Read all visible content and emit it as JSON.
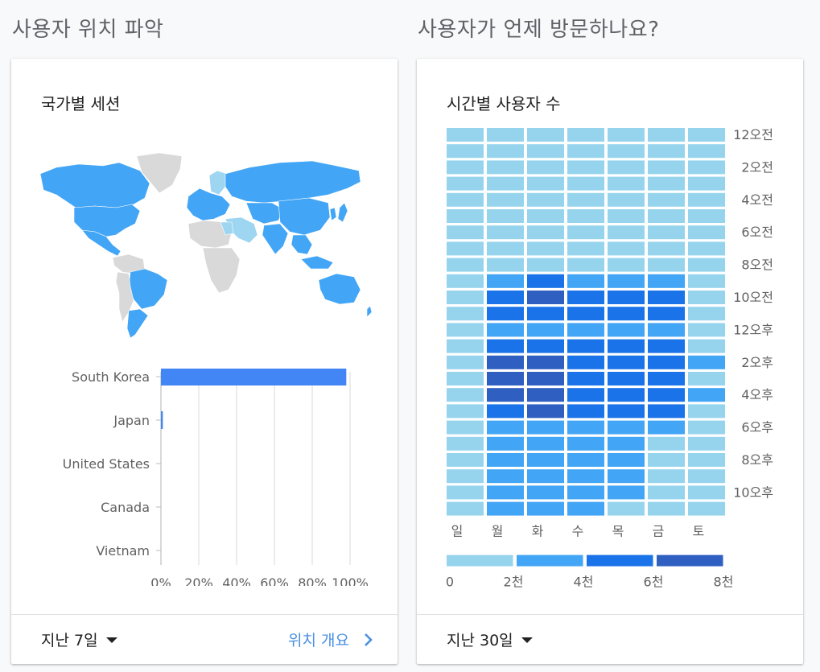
{
  "left_section": {
    "title": "사용자 위치 파악",
    "card_title": "국가별 세션",
    "footer_range": "지난 7일",
    "footer_link": "위치 개요"
  },
  "right_section": {
    "title": "사용자가 언제 방문하나요?",
    "card_title": "시간별 사용자 수",
    "footer_range": "지난 30일"
  },
  "icons": {
    "dropdown": "caret-down-icon",
    "link_arrow": "chevron-right-icon"
  },
  "colors": {
    "map_active": "#42a5f5",
    "map_light": "#9ed6f2",
    "map_inactive": "#d9d9d9",
    "bar": "#4285f4",
    "link": "#4a90e2"
  },
  "chart_data": [
    {
      "type": "bar",
      "orientation": "horizontal",
      "categories": [
        "South Korea",
        "Japan",
        "United States",
        "Canada",
        "Vietnam"
      ],
      "values": [
        98,
        1,
        0,
        0,
        0
      ],
      "xticks": [
        "0%",
        "20%",
        "40%",
        "60%",
        "80%",
        "100%"
      ],
      "xlim": [
        0,
        100
      ],
      "grid": true
    },
    {
      "type": "heatmap",
      "days": [
        "일",
        "월",
        "화",
        "수",
        "목",
        "금",
        "토"
      ],
      "hour_labels": [
        "12오전",
        "2오전",
        "4오전",
        "6오전",
        "8오전",
        "10오전",
        "12오후",
        "2오후",
        "4오후",
        "6오후",
        "8오후",
        "10오후"
      ],
      "legend_ticks": [
        "0",
        "2천",
        "4천",
        "6천",
        "8천"
      ],
      "legend_colors": [
        "#96d4ee",
        "#42a5f5",
        "#1a73e8",
        "#2f5fc0"
      ],
      "levels": [
        [
          0,
          0,
          0,
          0,
          0,
          0,
          0
        ],
        [
          0,
          0,
          0,
          0,
          0,
          0,
          0
        ],
        [
          0,
          0,
          0,
          0,
          0,
          0,
          0
        ],
        [
          0,
          0,
          0,
          0,
          0,
          0,
          0
        ],
        [
          0,
          0,
          0,
          0,
          0,
          0,
          0
        ],
        [
          0,
          0,
          0,
          0,
          0,
          0,
          0
        ],
        [
          0,
          0,
          0,
          0,
          0,
          0,
          0
        ],
        [
          0,
          0,
          0,
          0,
          0,
          0,
          0
        ],
        [
          0,
          0,
          0,
          0,
          0,
          0,
          0
        ],
        [
          0,
          1,
          2,
          1,
          1,
          1,
          0
        ],
        [
          0,
          2,
          3,
          2,
          2,
          2,
          0
        ],
        [
          0,
          2,
          2,
          2,
          2,
          2,
          0
        ],
        [
          0,
          1,
          1,
          1,
          1,
          1,
          0
        ],
        [
          0,
          2,
          2,
          2,
          2,
          2,
          0
        ],
        [
          0,
          3,
          3,
          2,
          2,
          2,
          1
        ],
        [
          0,
          3,
          3,
          2,
          2,
          2,
          0
        ],
        [
          0,
          3,
          3,
          2,
          2,
          2,
          1
        ],
        [
          0,
          2,
          3,
          2,
          2,
          2,
          0
        ],
        [
          0,
          1,
          1,
          1,
          1,
          1,
          0
        ],
        [
          0,
          1,
          1,
          1,
          1,
          0,
          0
        ],
        [
          0,
          1,
          1,
          1,
          1,
          0,
          0
        ],
        [
          0,
          1,
          1,
          1,
          1,
          0,
          0
        ],
        [
          0,
          1,
          1,
          1,
          1,
          0,
          0
        ],
        [
          0,
          1,
          1,
          1,
          0,
          0,
          0
        ]
      ]
    }
  ]
}
